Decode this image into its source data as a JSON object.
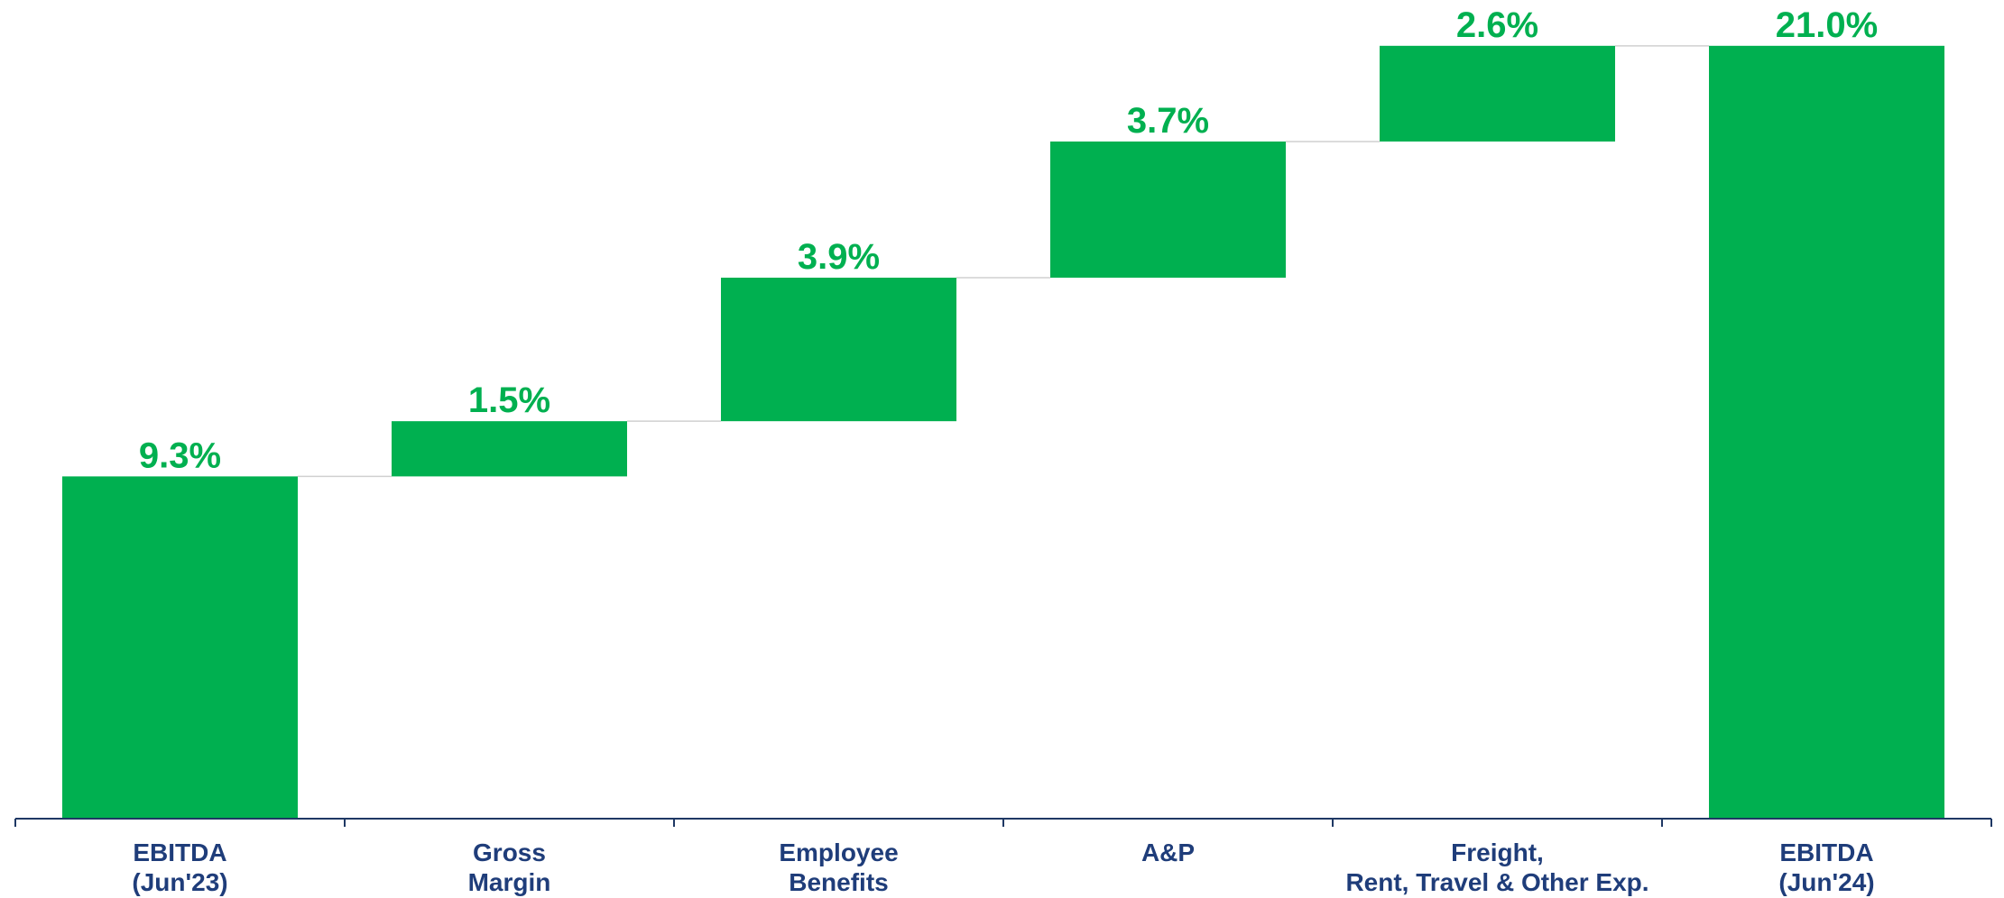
{
  "chart_data": {
    "type": "waterfall",
    "categories": [
      [
        "EBITDA",
        "(Jun'23)"
      ],
      [
        "Gross",
        "Margin"
      ],
      [
        "Employee",
        "Benefits"
      ],
      [
        "A&P"
      ],
      [
        "Freight,",
        "Rent, Travel & Other Exp."
      ],
      [
        "EBITDA",
        "(Jun'24)"
      ]
    ],
    "values": [
      9.3,
      1.5,
      3.9,
      3.7,
      2.6,
      21.0
    ],
    "value_labels": [
      "9.3%",
      "1.5%",
      "3.9%",
      "3.7%",
      "2.6%",
      "21.0%"
    ],
    "color": "#00b050",
    "ylim": [
      0,
      22
    ]
  }
}
